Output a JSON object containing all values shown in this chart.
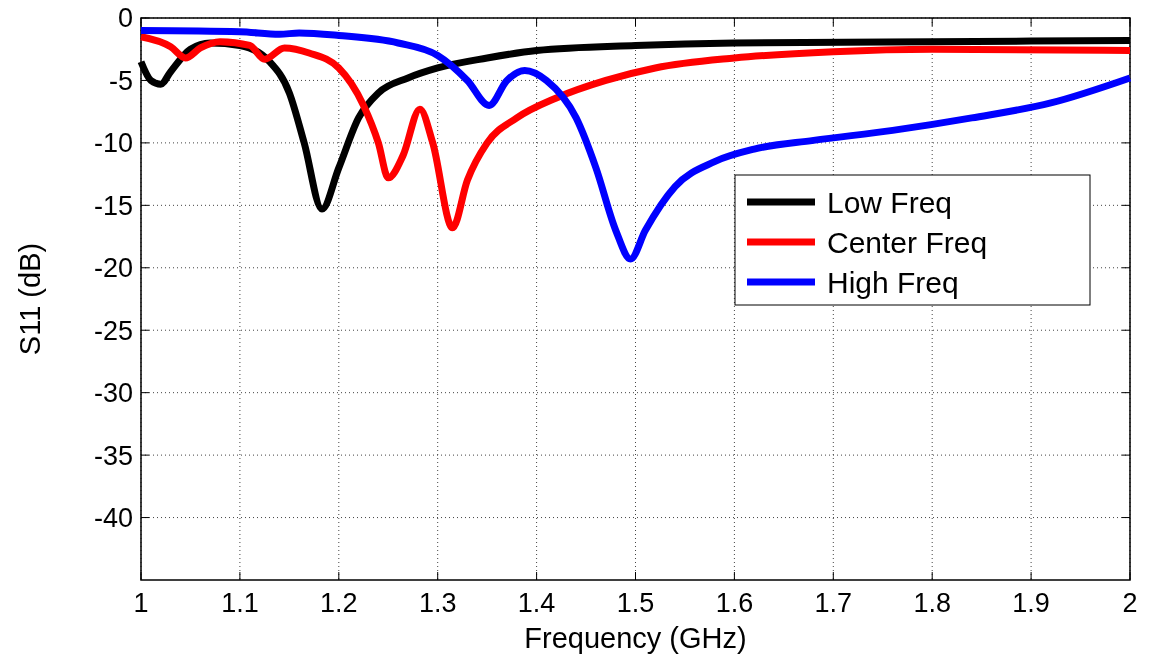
{
  "chart_data": {
    "type": "line",
    "xlabel": "Frequency (GHz)",
    "ylabel": "S11 (dB)",
    "xlim": [
      1,
      2
    ],
    "xticks": [
      1,
      1.1,
      1.2,
      1.3,
      1.4,
      1.5,
      1.6,
      1.7,
      1.8,
      1.9,
      2
    ],
    "ylim": [
      -45,
      0
    ],
    "yticks": [
      0,
      -5,
      -10,
      -15,
      -20,
      -25,
      -30,
      -35,
      -40
    ],
    "grid": true,
    "legend": "right",
    "line_style": "solid",
    "series": [
      {
        "name": "Low Freq",
        "color": "#000000",
        "x": [
          1,
          1.01,
          1.02,
          1.03,
          1.05,
          1.07,
          1.1,
          1.13,
          1.15,
          1.165,
          1.183,
          1.2,
          1.22,
          1.24,
          1.27,
          1.3,
          1.35,
          1.4,
          1.5,
          1.6,
          1.8,
          2
        ],
        "values": [
          -3.5,
          -5,
          -5.3,
          -4.3,
          -2.5,
          -2,
          -2.2,
          -3.5,
          -6,
          -10,
          -15.3,
          -12,
          -8,
          -6,
          -4.8,
          -4,
          -3.2,
          -2.6,
          -2.2,
          -2,
          -1.9,
          -1.8
        ]
      },
      {
        "name": "Center Freq",
        "color": "#ff0000",
        "x": [
          1,
          1.03,
          1.045,
          1.06,
          1.08,
          1.11,
          1.125,
          1.145,
          1.17,
          1.2,
          1.225,
          1.24,
          1.25,
          1.265,
          1.282,
          1.295,
          1.315,
          1.33,
          1.35,
          1.38,
          1.42,
          1.47,
          1.52,
          1.6,
          1.7,
          1.8,
          2
        ],
        "values": [
          -1.5,
          -2.3,
          -3.2,
          -2.4,
          -1.9,
          -2.2,
          -3.3,
          -2.4,
          -2.8,
          -4,
          -7,
          -10,
          -12.8,
          -11,
          -7.3,
          -10,
          -16.8,
          -13,
          -10,
          -8,
          -6.4,
          -5,
          -4,
          -3.2,
          -2.7,
          -2.5,
          -2.6
        ]
      },
      {
        "name": "High Freq",
        "color": "#0000ff",
        "x": [
          1,
          1.1,
          1.14,
          1.16,
          1.2,
          1.26,
          1.3,
          1.33,
          1.352,
          1.37,
          1.388,
          1.41,
          1.44,
          1.46,
          1.48,
          1.495,
          1.51,
          1.54,
          1.58,
          1.62,
          1.68,
          1.76,
          1.84,
          1.92,
          2
        ],
        "values": [
          -1,
          -1.1,
          -1.3,
          -1.2,
          -1.4,
          -2,
          -3,
          -5,
          -7,
          -5,
          -4.2,
          -5,
          -8,
          -12,
          -17,
          -19.3,
          -17,
          -13.5,
          -11.5,
          -10.5,
          -9.8,
          -9,
          -8,
          -6.8,
          -4.8
        ]
      }
    ]
  }
}
